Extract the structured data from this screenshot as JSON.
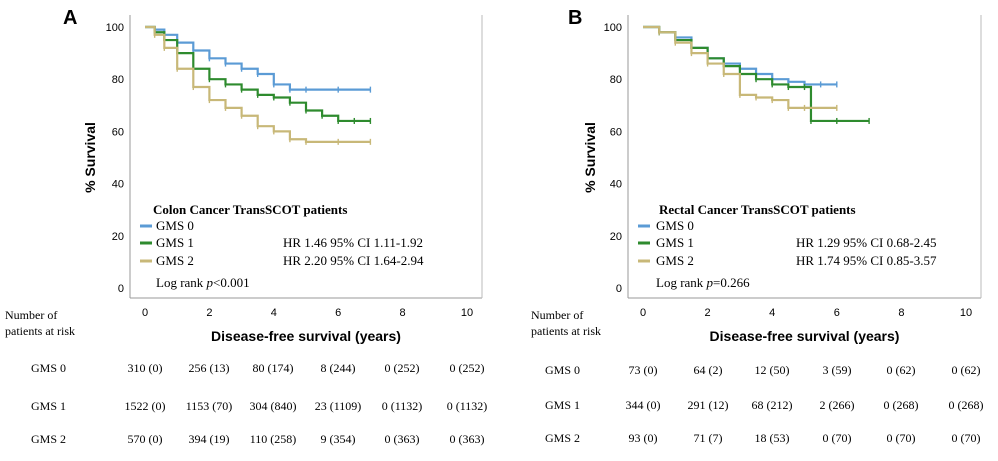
{
  "chart_data": [
    {
      "type": "line",
      "panel_label": "A",
      "title": "Colon Cancer TransSCOT patients",
      "xlabel": "Disease-free survival (years)",
      "ylabel": "% Survival",
      "xlim": [
        0,
        10
      ],
      "ylim": [
        0,
        100
      ],
      "x_ticks": [
        "0",
        "2",
        "4",
        "6",
        "8",
        "10"
      ],
      "y_ticks": [
        "0",
        "20",
        "40",
        "60",
        "80",
        "100"
      ],
      "legend_position": "lower-left",
      "series": [
        {
          "name": "GMS 0",
          "color": "#5b9bd5",
          "hr": "",
          "points": [
            [
              0,
              100
            ],
            [
              0.3,
              99
            ],
            [
              0.6,
              97
            ],
            [
              1,
              94
            ],
            [
              1.5,
              91
            ],
            [
              2,
              88
            ],
            [
              2.5,
              86
            ],
            [
              3,
              84
            ],
            [
              3.5,
              82
            ],
            [
              4,
              78
            ],
            [
              4.5,
              76
            ],
            [
              5,
              76
            ],
            [
              6,
              76
            ],
            [
              7,
              76
            ]
          ]
        },
        {
          "name": "GMS 1",
          "color": "#2e8b2e",
          "hr": "HR 1.46 95% CI 1.11-1.92",
          "points": [
            [
              0,
              100
            ],
            [
              0.3,
              98
            ],
            [
              0.6,
              95
            ],
            [
              1,
              90
            ],
            [
              1.5,
              84
            ],
            [
              2,
              80
            ],
            [
              2.5,
              78
            ],
            [
              3,
              76
            ],
            [
              3.5,
              74
            ],
            [
              4,
              73
            ],
            [
              4.5,
              71
            ],
            [
              5,
              68
            ],
            [
              5.5,
              66
            ],
            [
              6,
              64
            ],
            [
              6.5,
              64
            ],
            [
              7,
              64
            ]
          ]
        },
        {
          "name": "GMS 2",
          "color": "#c8b878",
          "hr": "HR 2.20 95% CI 1.64-2.94",
          "points": [
            [
              0,
              100
            ],
            [
              0.3,
              97
            ],
            [
              0.6,
              92
            ],
            [
              1,
              84
            ],
            [
              1.5,
              77
            ],
            [
              2,
              72
            ],
            [
              2.5,
              69
            ],
            [
              3,
              66
            ],
            [
              3.5,
              62
            ],
            [
              4,
              60
            ],
            [
              4.5,
              57
            ],
            [
              5,
              56
            ],
            [
              6,
              56
            ],
            [
              7,
              56
            ]
          ]
        }
      ],
      "pvalue_prefix": "Log rank ",
      "pvalue_p": "p",
      "pvalue_rest": "<0.001",
      "risk_label_line1": "Number of",
      "risk_label_line2": "patients at risk",
      "risk_table": [
        {
          "group": "GMS 0",
          "cells": [
            "310 (0)",
            "256 (13)",
            "80 (174)",
            "8 (244)",
            "0 (252)",
            "0 (252)"
          ]
        },
        {
          "group": "GMS 1",
          "cells": [
            "1522 (0)",
            "1153 (70)",
            "304 (840)",
            "23 (1109)",
            "0 (1132)",
            "0 (1132)"
          ]
        },
        {
          "group": "GMS 2",
          "cells": [
            "570 (0)",
            "394 (19)",
            "110 (258)",
            "9 (354)",
            "0 (363)",
            "0 (363)"
          ]
        }
      ]
    },
    {
      "type": "line",
      "panel_label": "B",
      "title": "Rectal Cancer TransSCOT patients",
      "xlabel": "Disease-free survival (years)",
      "ylabel": "% Survival",
      "xlim": [
        0,
        10
      ],
      "ylim": [
        0,
        100
      ],
      "x_ticks": [
        "0",
        "2",
        "4",
        "6",
        "8",
        "10"
      ],
      "y_ticks": [
        "0",
        "20",
        "40",
        "60",
        "80",
        "100"
      ],
      "legend_position": "lower-left",
      "series": [
        {
          "name": "GMS 0",
          "color": "#5b9bd5",
          "hr": "",
          "points": [
            [
              0,
              100
            ],
            [
              0.5,
              98
            ],
            [
              1,
              96
            ],
            [
              1.5,
              92
            ],
            [
              2,
              88
            ],
            [
              2.5,
              86
            ],
            [
              3,
              84
            ],
            [
              3.5,
              82
            ],
            [
              4,
              80
            ],
            [
              4.5,
              79
            ],
            [
              5,
              78
            ],
            [
              5.5,
              78
            ],
            [
              6,
              78
            ]
          ]
        },
        {
          "name": "GMS 1",
          "color": "#2e8b2e",
          "hr": "HR 1.29 95% CI 0.68-2.45",
          "points": [
            [
              0,
              100
            ],
            [
              0.5,
              98
            ],
            [
              1,
              95
            ],
            [
              1.5,
              92
            ],
            [
              2,
              88
            ],
            [
              2.5,
              85
            ],
            [
              3,
              82
            ],
            [
              3.5,
              80
            ],
            [
              4,
              78
            ],
            [
              4.5,
              77
            ],
            [
              5,
              77
            ],
            [
              5.2,
              64
            ],
            [
              6,
              64
            ],
            [
              7,
              64
            ]
          ]
        },
        {
          "name": "GMS 2",
          "color": "#c8b878",
          "hr": "HR 1.74 95% CI 0.85-3.57",
          "points": [
            [
              0,
              100
            ],
            [
              0.5,
              98
            ],
            [
              1,
              94
            ],
            [
              1.5,
              90
            ],
            [
              2,
              86
            ],
            [
              2.5,
              82
            ],
            [
              3,
              74
            ],
            [
              3.5,
              73
            ],
            [
              4,
              72
            ],
            [
              4.5,
              69
            ],
            [
              5,
              69
            ],
            [
              6,
              69
            ]
          ]
        }
      ],
      "pvalue_prefix": "Log rank ",
      "pvalue_p": "p",
      "pvalue_rest": "=0.266",
      "risk_label_line1": "Number of",
      "risk_label_line2": "patients at risk",
      "risk_table": [
        {
          "group": "GMS 0",
          "cells": [
            "73 (0)",
            "64 (2)",
            "12 (50)",
            "3 (59)",
            "0 (62)",
            "0 (62)"
          ]
        },
        {
          "group": "GMS 1",
          "cells": [
            "344 (0)",
            "291 (12)",
            "68 (212)",
            "2 (266)",
            "0 (268)",
            "0 (268)"
          ]
        },
        {
          "group": "GMS 2",
          "cells": [
            "93 (0)",
            "71 (7)",
            "18 (53)",
            "0 (70)",
            "0 (70)",
            "0 (70)"
          ]
        }
      ]
    }
  ]
}
